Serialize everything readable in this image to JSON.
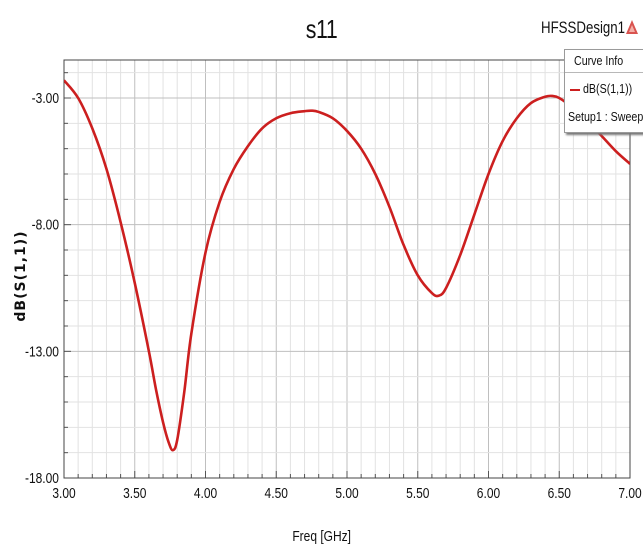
{
  "header": {
    "design_name": "HFSSDesign1"
  },
  "legend": {
    "title": "Curve Info",
    "entry": "dB(S(1,1))",
    "sub": "Setup1 : Sweep"
  },
  "chart_data": {
    "type": "line",
    "title": "s11",
    "xlabel": "Freq [GHz]",
    "ylabel": "dB(S(1,1))",
    "xlim": [
      3.0,
      7.0
    ],
    "ylim": [
      -18.0,
      -1.5
    ],
    "xticks": [
      "3.00",
      "3.50",
      "4.00",
      "4.50",
      "5.00",
      "5.50",
      "6.00",
      "6.50",
      "7.00"
    ],
    "yticks": [
      "-3.00",
      "-8.00",
      "-13.00",
      "-18.00"
    ],
    "grid": true,
    "legend_position": "top-right",
    "series": [
      {
        "name": "dB(S(1,1))",
        "color": "#cc1f1f",
        "x": [
          3.0,
          3.1,
          3.2,
          3.3,
          3.4,
          3.5,
          3.6,
          3.65,
          3.7,
          3.74,
          3.77,
          3.8,
          3.85,
          3.9,
          4.0,
          4.1,
          4.2,
          4.3,
          4.4,
          4.5,
          4.6,
          4.7,
          4.75,
          4.8,
          4.9,
          5.0,
          5.1,
          5.2,
          5.3,
          5.4,
          5.5,
          5.6,
          5.65,
          5.7,
          5.8,
          5.9,
          6.0,
          6.1,
          6.2,
          6.3,
          6.4,
          6.45,
          6.5,
          6.6,
          6.7,
          6.8,
          6.9,
          7.0
        ],
        "values": [
          -2.3,
          -3.0,
          -4.2,
          -5.8,
          -7.9,
          -10.3,
          -13.0,
          -14.5,
          -15.8,
          -16.6,
          -16.9,
          -16.5,
          -14.6,
          -12.3,
          -9.1,
          -7.1,
          -5.8,
          -4.9,
          -4.2,
          -3.8,
          -3.6,
          -3.52,
          -3.5,
          -3.55,
          -3.8,
          -4.3,
          -5.0,
          -6.0,
          -7.3,
          -8.8,
          -10.0,
          -10.7,
          -10.8,
          -10.5,
          -9.2,
          -7.6,
          -6.0,
          -4.7,
          -3.8,
          -3.2,
          -2.95,
          -2.92,
          -3.0,
          -3.4,
          -3.9,
          -4.5,
          -5.1,
          -5.6
        ]
      }
    ]
  }
}
